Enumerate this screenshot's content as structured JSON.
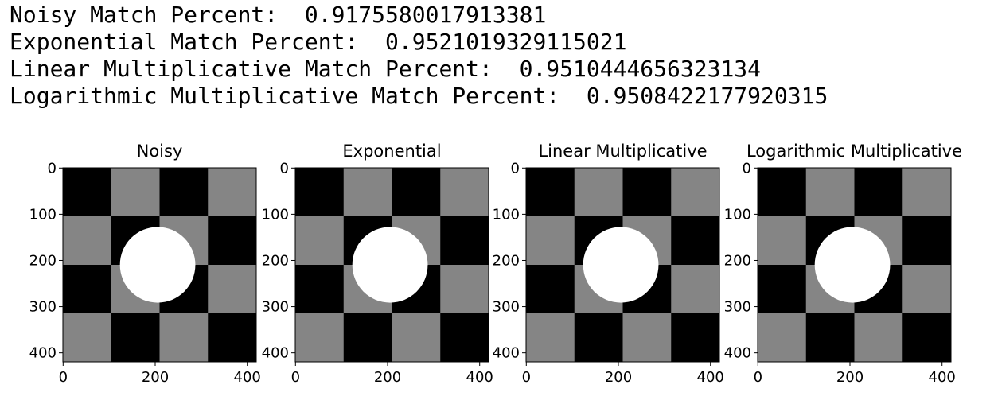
{
  "output_lines": [
    "Noisy Match Percent:  0.9175580017913381",
    "Exponential Match Percent:  0.9521019329115021",
    "Linear Multiplicative Match Percent:  0.9510444656323134",
    "Logarithmic Multiplicative Match Percent:  0.9508422177920315"
  ],
  "panels": [
    {
      "title": "Noisy",
      "xlim": [
        -0.5,
        419.5
      ],
      "ylim": [
        419.5,
        -0.5
      ],
      "xticks": [
        0,
        200,
        400
      ],
      "yticks": [
        0,
        100,
        200,
        300,
        400
      ]
    },
    {
      "title": "Exponential",
      "xlim": [
        -0.5,
        419.5
      ],
      "ylim": [
        419.5,
        -0.5
      ],
      "xticks": [
        0,
        200,
        400
      ],
      "yticks": [
        0,
        100,
        200,
        300,
        400
      ]
    },
    {
      "title": "Linear Multiplicative",
      "xlim": [
        -0.5,
        419.5
      ],
      "ylim": [
        419.5,
        -0.5
      ],
      "xticks": [
        0,
        200,
        400
      ],
      "yticks": [
        0,
        100,
        200,
        300,
        400
      ]
    },
    {
      "title": "Logarithmic Multiplicative",
      "xlim": [
        -0.5,
        419.5
      ],
      "ylim": [
        419.5,
        -0.5
      ],
      "xticks": [
        0,
        200,
        400
      ],
      "yticks": [
        0,
        100,
        200,
        300,
        400
      ]
    }
  ]
}
